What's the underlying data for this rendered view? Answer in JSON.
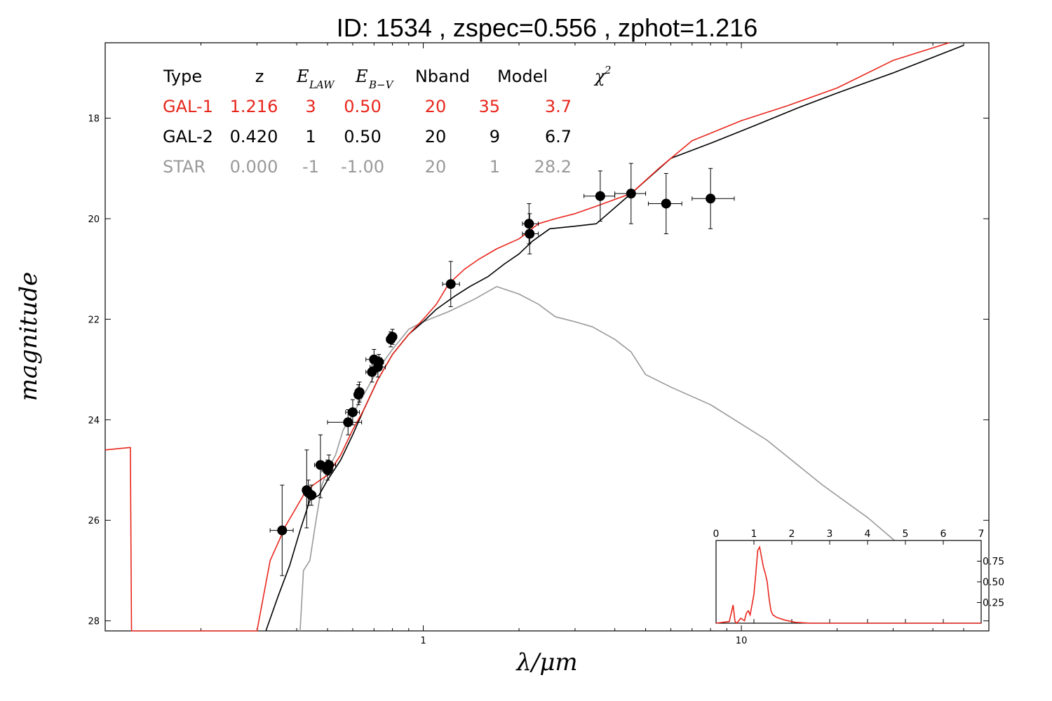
{
  "chart_data": {
    "type": "scatter",
    "title": "ID:  1534  , zspec=0.556 , zphot=1.216",
    "xlabel": "λ/μm",
    "ylabel": "magnitude",
    "x_scale": "log",
    "x_range": [
      0.1,
      60
    ],
    "x_tick_labels": [
      "1",
      "10"
    ],
    "y_range": [
      16.5,
      28.2
    ],
    "y_inverted": true,
    "y_tick_labels": [
      "18",
      "20",
      "22",
      "24",
      "26",
      "28"
    ],
    "table": {
      "header": {
        "type": "Type",
        "z": "z",
        "elaw": "E",
        "elaw_sub": "LAW",
        "ebv": "E",
        "ebv_sub": "B−V",
        "nband": "Nband",
        "model": "Model",
        "chi2": "χ",
        "chi2_sup": "2"
      },
      "rows": [
        {
          "type": "GAL-1",
          "z": "1.216",
          "elaw": "3",
          "ebv": "0.50",
          "nband": "20",
          "model": "35",
          "chi2": "3.7",
          "color": "#e8261c"
        },
        {
          "type": "GAL-2",
          "z": "0.420",
          "elaw": "1",
          "ebv": "0.50",
          "nband": "20",
          "model": "9",
          "chi2": "6.7",
          "color": "#000000"
        },
        {
          "type": "STAR",
          "z": "0.000",
          "elaw": "-1",
          "ebv": "-1.00",
          "nband": "20",
          "model": "1",
          "chi2": "28.2",
          "color": "#999999"
        }
      ]
    },
    "observed_points": [
      {
        "x": 0.36,
        "y": 26.2,
        "xerr": [
          0.33,
          0.39
        ],
        "yerr": [
          25.3,
          27.1
        ]
      },
      {
        "x": 0.43,
        "y": 25.4,
        "xerr": [
          0.418,
          0.442
        ],
        "yerr": [
          24.6,
          26.15
        ]
      },
      {
        "x": 0.435,
        "y": 25.45,
        "xerr": [
          0.42,
          0.45
        ],
        "yerr": [
          25.2,
          25.7
        ]
      },
      {
        "x": 0.445,
        "y": 25.5,
        "xerr": [
          0.43,
          0.46
        ],
        "yerr": [
          25.3,
          25.7
        ]
      },
      {
        "x": 0.475,
        "y": 24.9,
        "xerr": [
          0.455,
          0.495
        ],
        "yerr": [
          24.3,
          25.55
        ]
      },
      {
        "x": 0.5,
        "y": 25.0,
        "xerr": [
          0.48,
          0.52
        ],
        "yerr": [
          24.8,
          25.2
        ]
      },
      {
        "x": 0.505,
        "y": 24.9,
        "xerr": [
          0.49,
          0.53
        ],
        "yerr": [
          24.7,
          25.1
        ]
      },
      {
        "x": 0.58,
        "y": 24.05,
        "xerr": [
          0.5,
          0.64
        ],
        "yerr": [
          23.8,
          24.3
        ]
      },
      {
        "x": 0.6,
        "y": 23.85,
        "xerr": [
          0.57,
          0.63
        ],
        "yerr": [
          23.6,
          24.1
        ]
      },
      {
        "x": 0.625,
        "y": 23.5,
        "xerr": [
          0.61,
          0.645
        ],
        "yerr": [
          23.3,
          23.7
        ]
      },
      {
        "x": 0.63,
        "y": 23.45,
        "xerr": [
          0.61,
          0.65
        ],
        "yerr": [
          23.25,
          23.65
        ]
      },
      {
        "x": 0.69,
        "y": 23.05,
        "xerr": [
          0.66,
          0.72
        ],
        "yerr": [
          22.85,
          23.25
        ]
      },
      {
        "x": 0.7,
        "y": 22.8,
        "xerr": [
          0.66,
          0.74
        ],
        "yerr": [
          22.6,
          23.0
        ]
      },
      {
        "x": 0.72,
        "y": 22.95,
        "xerr": [
          0.68,
          0.76
        ],
        "yerr": [
          22.75,
          23.15
        ]
      },
      {
        "x": 0.725,
        "y": 22.85,
        "xerr": [
          0.7,
          0.75
        ],
        "yerr": [
          22.7,
          23.0
        ]
      },
      {
        "x": 0.79,
        "y": 22.4,
        "xerr": [
          0.77,
          0.81
        ],
        "yerr": [
          22.25,
          22.55
        ]
      },
      {
        "x": 0.8,
        "y": 22.35,
        "xerr": [
          0.78,
          0.82
        ],
        "yerr": [
          22.2,
          22.5
        ]
      },
      {
        "x": 1.22,
        "y": 21.3,
        "xerr": [
          1.15,
          1.3
        ],
        "yerr": [
          20.85,
          21.75
        ]
      },
      {
        "x": 2.15,
        "y": 20.1,
        "xerr": [
          2.05,
          2.3
        ],
        "yerr": [
          19.7,
          20.5
        ]
      },
      {
        "x": 2.16,
        "y": 20.3,
        "xerr": [
          2.05,
          2.3
        ],
        "yerr": [
          19.9,
          20.7
        ]
      },
      {
        "x": 3.6,
        "y": 19.55,
        "xerr": [
          3.2,
          4.0
        ],
        "yerr": [
          19.05,
          20.05
        ]
      },
      {
        "x": 4.5,
        "y": 19.5,
        "xerr": [
          4.0,
          5.0
        ],
        "yerr": [
          18.9,
          20.1
        ]
      },
      {
        "x": 5.8,
        "y": 19.7,
        "xerr": [
          5.1,
          6.5
        ],
        "yerr": [
          19.1,
          20.3
        ]
      },
      {
        "x": 8.0,
        "y": 19.6,
        "xerr": [
          7.0,
          9.5
        ],
        "yerr": [
          19.0,
          20.2
        ]
      }
    ],
    "series": [
      {
        "name": "GAL-1",
        "color": "#e8261c",
        "x": [
          0.1,
          0.12,
          0.121,
          0.3,
          0.33,
          0.37,
          0.42,
          0.45,
          0.5,
          0.55,
          0.6,
          0.65,
          0.72,
          0.8,
          0.9,
          1.0,
          1.1,
          1.2,
          1.35,
          1.5,
          1.7,
          2.0,
          2.3,
          2.6,
          3.0,
          3.5,
          4.5,
          5.5,
          7.0,
          10.0,
          14.0,
          20.0,
          30.0,
          45.0
        ],
        "y": [
          24.6,
          24.55,
          28.2,
          28.2,
          26.8,
          26.1,
          25.5,
          25.3,
          25.1,
          24.7,
          24.2,
          23.8,
          23.2,
          22.7,
          22.3,
          22.0,
          21.7,
          21.3,
          21.0,
          20.8,
          20.6,
          20.4,
          20.1,
          20.0,
          19.9,
          19.75,
          19.5,
          19.0,
          18.45,
          18.05,
          17.75,
          17.4,
          16.85,
          16.5
        ]
      },
      {
        "name": "GAL-2",
        "color": "#000000",
        "x": [
          0.32,
          0.35,
          0.38,
          0.41,
          0.44,
          0.47,
          0.5,
          0.55,
          0.6,
          0.65,
          0.72,
          0.8,
          0.9,
          1.0,
          1.1,
          1.25,
          1.4,
          1.6,
          1.8,
          2.0,
          2.2,
          2.5,
          3.0,
          3.5,
          4.5,
          6.0,
          8.0,
          11.0,
          15.0,
          20.0,
          30.0,
          50.0
        ],
        "y": [
          28.2,
          27.5,
          26.9,
          26.2,
          25.6,
          25.5,
          25.2,
          24.8,
          24.3,
          23.8,
          23.2,
          22.7,
          22.3,
          22.05,
          21.8,
          21.55,
          21.35,
          21.15,
          20.9,
          20.7,
          20.45,
          20.2,
          20.15,
          20.1,
          19.5,
          18.8,
          18.5,
          18.15,
          17.8,
          17.5,
          17.1,
          16.55
        ]
      },
      {
        "name": "STAR",
        "color": "#999999",
        "x": [
          0.41,
          0.42,
          0.44,
          0.46,
          0.48,
          0.5,
          0.53,
          0.56,
          0.6,
          0.65,
          0.72,
          0.8,
          0.9,
          1.0,
          1.2,
          1.45,
          1.7,
          2.0,
          2.3,
          2.6,
          3.0,
          3.4,
          4.0,
          4.5,
          5.0,
          6.0,
          8.0,
          12.0,
          18.0,
          25.0,
          33.0
        ],
        "y": [
          28.2,
          27.0,
          26.8,
          26.0,
          25.3,
          25.0,
          24.7,
          24.2,
          23.9,
          23.5,
          23.0,
          22.6,
          22.2,
          22.05,
          21.85,
          21.6,
          21.35,
          21.5,
          21.7,
          21.95,
          22.05,
          22.15,
          22.4,
          22.65,
          23.1,
          23.35,
          23.7,
          24.4,
          25.3,
          25.95,
          26.6
        ]
      }
    ],
    "inset": {
      "type": "line",
      "x_range": [
        0,
        7
      ],
      "x_tick_labels": [
        "0",
        "1",
        "2",
        "3",
        "4",
        "5",
        "6",
        "7"
      ],
      "y_range": [
        0,
        1
      ],
      "y_tick_labels": [
        "0.25",
        "0.50",
        "0.75"
      ],
      "color": "#e8261c",
      "x": [
        0.0,
        0.35,
        0.45,
        0.5,
        0.55,
        0.65,
        0.75,
        0.8,
        0.85,
        0.9,
        1.0,
        1.05,
        1.1,
        1.15,
        1.2,
        1.25,
        1.3,
        1.35,
        1.4,
        1.45,
        1.5,
        1.6,
        1.8,
        2.1,
        2.5,
        7.0
      ],
      "y": [
        0.0,
        0.02,
        0.22,
        0.02,
        0.0,
        0.06,
        0.03,
        0.12,
        0.15,
        0.1,
        0.35,
        0.6,
        0.88,
        0.92,
        0.8,
        0.68,
        0.6,
        0.5,
        0.3,
        0.15,
        0.1,
        0.07,
        0.04,
        0.01,
        0.0,
        0.0
      ]
    }
  }
}
